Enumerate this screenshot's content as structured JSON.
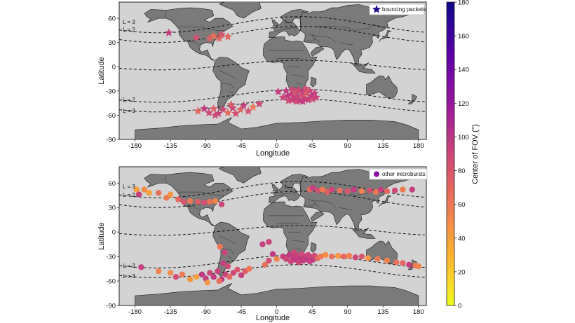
{
  "chart_data": [
    {
      "type": "scatter",
      "panel": "top",
      "xlabel": "Longitude",
      "ylabel": "Latitude",
      "xlim": [
        -200,
        190
      ],
      "ylim": [
        -90,
        80
      ],
      "xticks": [
        "-180",
        "-135",
        "-90",
        "-45",
        "0",
        "45",
        "90",
        "135",
        "180"
      ],
      "yticks": [
        "60",
        "30",
        "0",
        "-30",
        "-60",
        "-90"
      ],
      "legend": "bouncing packets",
      "legend_position": "top-right",
      "marker": "star",
      "l_shell_labels": [
        "L = 3",
        "L = 2",
        "L = 2",
        "L = 3"
      ],
      "points": [
        {
          "lon": -137,
          "lat": 42,
          "fov": 95
        },
        {
          "lon": -102,
          "lat": 36,
          "fov": 85
        },
        {
          "lon": -85,
          "lat": 35,
          "fov": 75
        },
        {
          "lon": -80,
          "lat": 38,
          "fov": 65
        },
        {
          "lon": -73,
          "lat": 35,
          "fov": 70
        },
        {
          "lon": -70,
          "lat": 40,
          "fov": 80
        },
        {
          "lon": -62,
          "lat": 37,
          "fov": 72
        },
        {
          "lon": -100,
          "lat": -55,
          "fov": 70
        },
        {
          "lon": -92,
          "lat": -52,
          "fov": 98
        },
        {
          "lon": -86,
          "lat": -57,
          "fov": 90
        },
        {
          "lon": -80,
          "lat": -52,
          "fov": 75
        },
        {
          "lon": -74,
          "lat": -58,
          "fov": 95
        },
        {
          "lon": -68,
          "lat": -53,
          "fov": 88
        },
        {
          "lon": -62,
          "lat": -57,
          "fov": 68
        },
        {
          "lon": -56,
          "lat": -51,
          "fov": 92
        },
        {
          "lon": -52,
          "lat": -58,
          "fov": 85
        },
        {
          "lon": -46,
          "lat": -53,
          "fov": 72
        },
        {
          "lon": -42,
          "lat": -48,
          "fov": 96
        },
        {
          "lon": -36,
          "lat": -55,
          "fov": 82
        },
        {
          "lon": -30,
          "lat": -50,
          "fov": 60
        },
        {
          "lon": -22,
          "lat": -46,
          "fov": 90
        },
        {
          "lon": -78,
          "lat": -60,
          "fov": 88
        },
        {
          "lon": -58,
          "lat": -47,
          "fov": 78
        },
        {
          "lon": 2,
          "lat": -31,
          "fov": 95
        },
        {
          "lon": 8,
          "lat": -38,
          "fov": 90
        },
        {
          "lon": 12,
          "lat": -30,
          "fov": 98
        },
        {
          "lon": 15,
          "lat": -42,
          "fov": 86
        },
        {
          "lon": 18,
          "lat": -34,
          "fov": 92
        },
        {
          "lon": 20,
          "lat": -28,
          "fov": 88
        },
        {
          "lon": 22,
          "lat": -40,
          "fov": 96
        },
        {
          "lon": 24,
          "lat": -33,
          "fov": 80
        },
        {
          "lon": 26,
          "lat": -37,
          "fov": 94
        },
        {
          "lon": 28,
          "lat": -29,
          "fov": 90
        },
        {
          "lon": 30,
          "lat": -42,
          "fov": 98
        },
        {
          "lon": 32,
          "lat": -35,
          "fov": 85
        },
        {
          "lon": 34,
          "lat": -31,
          "fov": 97
        },
        {
          "lon": 36,
          "lat": -39,
          "fov": 91
        },
        {
          "lon": 38,
          "lat": -33,
          "fov": 75
        },
        {
          "lon": 40,
          "lat": -41,
          "fov": 93
        },
        {
          "lon": 42,
          "lat": -30,
          "fov": 89
        },
        {
          "lon": 44,
          "lat": -36,
          "fov": 96
        },
        {
          "lon": 46,
          "lat": -40,
          "fov": 87
        },
        {
          "lon": 48,
          "lat": -33,
          "fov": 95
        },
        {
          "lon": 50,
          "lat": -38,
          "fov": 92
        },
        {
          "lon": 14,
          "lat": -36,
          "fov": 99
        },
        {
          "lon": 19,
          "lat": -41,
          "fov": 94
        },
        {
          "lon": 25,
          "lat": -43,
          "fov": 90
        },
        {
          "lon": 33,
          "lat": -43,
          "fov": 97
        },
        {
          "lon": 37,
          "lat": -27,
          "fov": 84
        }
      ]
    },
    {
      "type": "scatter",
      "panel": "bottom",
      "xlabel": "Longitude",
      "ylabel": "Latitude",
      "xlim": [
        -200,
        190
      ],
      "ylim": [
        -90,
        80
      ],
      "xticks": [
        "-180",
        "-135",
        "-90",
        "-45",
        "0",
        "45",
        "90",
        "135",
        "180"
      ],
      "yticks": [
        "60",
        "30",
        "0",
        "-30",
        "-60",
        "-90"
      ],
      "legend": "other microbursts",
      "legend_position": "top-right",
      "marker": "circle",
      "l_shell_labels": [
        "L = 3",
        "L = 2",
        "L = 2",
        "L = 3"
      ],
      "points": [
        {
          "lon": -178,
          "lat": 52,
          "fov": 40
        },
        {
          "lon": -175,
          "lat": 46,
          "fov": 95
        },
        {
          "lon": -168,
          "lat": 52,
          "fov": 50
        },
        {
          "lon": -162,
          "lat": 48,
          "fov": 40
        },
        {
          "lon": -150,
          "lat": 48,
          "fov": 65
        },
        {
          "lon": -140,
          "lat": 42,
          "fov": 60
        },
        {
          "lon": -135,
          "lat": 46,
          "fov": 45
        },
        {
          "lon": -125,
          "lat": 40,
          "fov": 70
        },
        {
          "lon": -118,
          "lat": 37,
          "fov": 80
        },
        {
          "lon": -110,
          "lat": 38,
          "fov": 60
        },
        {
          "lon": -100,
          "lat": 37,
          "fov": 75
        },
        {
          "lon": -92,
          "lat": 36,
          "fov": 85
        },
        {
          "lon": -85,
          "lat": 37,
          "fov": 65
        },
        {
          "lon": -78,
          "lat": 38,
          "fov": 55
        },
        {
          "lon": -70,
          "lat": 34,
          "fov": 90
        },
        {
          "lon": -172,
          "lat": -43,
          "fov": 95
        },
        {
          "lon": -150,
          "lat": -48,
          "fov": 55
        },
        {
          "lon": -135,
          "lat": -50,
          "fov": 50
        },
        {
          "lon": -128,
          "lat": -55,
          "fov": 85
        },
        {
          "lon": -120,
          "lat": -52,
          "fov": 60
        },
        {
          "lon": -110,
          "lat": -58,
          "fov": 45
        },
        {
          "lon": -102,
          "lat": -55,
          "fov": 40
        },
        {
          "lon": -95,
          "lat": -52,
          "fov": 98
        },
        {
          "lon": -90,
          "lat": -57,
          "fov": 95
        },
        {
          "lon": -85,
          "lat": -50,
          "fov": 90
        },
        {
          "lon": -80,
          "lat": -55,
          "fov": 97
        },
        {
          "lon": -75,
          "lat": -48,
          "fov": 94
        },
        {
          "lon": -70,
          "lat": -58,
          "fov": 99
        },
        {
          "lon": -65,
          "lat": -52,
          "fov": 92
        },
        {
          "lon": -60,
          "lat": -55,
          "fov": 70
        },
        {
          "lon": -55,
          "lat": -50,
          "fov": 90
        },
        {
          "lon": -50,
          "lat": -46,
          "fov": 80
        },
        {
          "lon": -45,
          "lat": -53,
          "fov": 95
        },
        {
          "lon": -40,
          "lat": -48,
          "fov": 75
        },
        {
          "lon": -35,
          "lat": -45,
          "fov": 60
        },
        {
          "lon": -72,
          "lat": -18,
          "fov": 60
        },
        {
          "lon": -68,
          "lat": -38,
          "fov": 95
        },
        {
          "lon": -66,
          "lat": -25,
          "fov": 92
        },
        {
          "lon": -62,
          "lat": -42,
          "fov": 88
        },
        {
          "lon": -73,
          "lat": -60,
          "fov": 65
        },
        {
          "lon": -88,
          "lat": -62,
          "fov": 45
        },
        {
          "lon": -15,
          "lat": -40,
          "fov": 65
        },
        {
          "lon": -10,
          "lat": -35,
          "fov": 85
        },
        {
          "lon": -5,
          "lat": -27,
          "fov": 98
        },
        {
          "lon": 0,
          "lat": -33,
          "fov": 55
        },
        {
          "lon": -18,
          "lat": -15,
          "fov": 95
        },
        {
          "lon": -10,
          "lat": -12,
          "fov": 92
        },
        {
          "lon": 8,
          "lat": -30,
          "fov": 95
        },
        {
          "lon": 12,
          "lat": -33,
          "fov": 90
        },
        {
          "lon": 16,
          "lat": -28,
          "fov": 98
        },
        {
          "lon": 18,
          "lat": -36,
          "fov": 92
        },
        {
          "lon": 20,
          "lat": -30,
          "fov": 97
        },
        {
          "lon": 22,
          "lat": -25,
          "fov": 90
        },
        {
          "lon": 24,
          "lat": -34,
          "fov": 99
        },
        {
          "lon": 26,
          "lat": -29,
          "fov": 94
        },
        {
          "lon": 28,
          "lat": -37,
          "fov": 91
        },
        {
          "lon": 30,
          "lat": -31,
          "fov": 98
        },
        {
          "lon": 32,
          "lat": -27,
          "fov": 88
        },
        {
          "lon": 34,
          "lat": -35,
          "fov": 96
        },
        {
          "lon": 36,
          "lat": -30,
          "fov": 93
        },
        {
          "lon": 38,
          "lat": -33,
          "fov": 99
        },
        {
          "lon": 40,
          "lat": -28,
          "fov": 90
        },
        {
          "lon": 42,
          "lat": -36,
          "fov": 95
        },
        {
          "lon": 44,
          "lat": -31,
          "fov": 92
        },
        {
          "lon": 46,
          "lat": -34,
          "fov": 97
        },
        {
          "lon": 48,
          "lat": -29,
          "fov": 88
        },
        {
          "lon": 52,
          "lat": -32,
          "fov": 70
        },
        {
          "lon": 56,
          "lat": -30,
          "fov": 60
        },
        {
          "lon": 62,
          "lat": -28,
          "fov": 50
        },
        {
          "lon": 70,
          "lat": -30,
          "fov": 65
        },
        {
          "lon": 78,
          "lat": -29,
          "fov": 45
        },
        {
          "lon": 85,
          "lat": -30,
          "fov": 70
        },
        {
          "lon": 92,
          "lat": -29,
          "fov": 55
        },
        {
          "lon": 100,
          "lat": -31,
          "fov": 90
        },
        {
          "lon": 108,
          "lat": -30,
          "fov": 80
        },
        {
          "lon": 116,
          "lat": -32,
          "fov": 45
        },
        {
          "lon": 128,
          "lat": -33,
          "fov": 60
        },
        {
          "lon": 140,
          "lat": -35,
          "fov": 55
        },
        {
          "lon": 152,
          "lat": -37,
          "fov": 65
        },
        {
          "lon": 160,
          "lat": -38,
          "fov": 70
        },
        {
          "lon": 168,
          "lat": -40,
          "fov": 95
        },
        {
          "lon": 176,
          "lat": -41,
          "fov": 60
        },
        {
          "lon": 180,
          "lat": -42,
          "fov": 55
        },
        {
          "lon": 42,
          "lat": 52,
          "fov": 70
        },
        {
          "lon": 46,
          "lat": 54,
          "fov": 95
        },
        {
          "lon": 52,
          "lat": 51,
          "fov": 85
        },
        {
          "lon": 58,
          "lat": 52,
          "fov": 60
        },
        {
          "lon": 64,
          "lat": 49,
          "fov": 75
        },
        {
          "lon": 70,
          "lat": 52,
          "fov": 90
        },
        {
          "lon": 80,
          "lat": 51,
          "fov": 65
        },
        {
          "lon": 90,
          "lat": 50,
          "fov": 80
        },
        {
          "lon": 98,
          "lat": 52,
          "fov": 95
        },
        {
          "lon": 108,
          "lat": 50,
          "fov": 55
        },
        {
          "lon": 118,
          "lat": 51,
          "fov": 85
        },
        {
          "lon": 126,
          "lat": 49,
          "fov": 60
        },
        {
          "lon": 132,
          "lat": 52,
          "fov": 95
        },
        {
          "lon": 140,
          "lat": 50,
          "fov": 70
        },
        {
          "lon": 150,
          "lat": 51,
          "fov": 90
        },
        {
          "lon": 160,
          "lat": 52,
          "fov": 60
        },
        {
          "lon": 172,
          "lat": 52,
          "fov": 95
        }
      ]
    }
  ],
  "colorbar": {
    "label": "Center of FOV (°)",
    "min": 0,
    "max": 180,
    "ticks": [
      "0",
      "20",
      "40",
      "60",
      "80",
      "100",
      "120",
      "140",
      "160",
      "180"
    ],
    "colormap": "plasma_r",
    "stops": [
      "#f0f921",
      "#fdb42f",
      "#ed7953",
      "#cc4778",
      "#9c179e",
      "#5c01a6",
      "#0d0887"
    ]
  },
  "colors": {
    "ocean": "#d3d3d3",
    "land": "#7a7a7a",
    "border": "#1a1a1a"
  }
}
